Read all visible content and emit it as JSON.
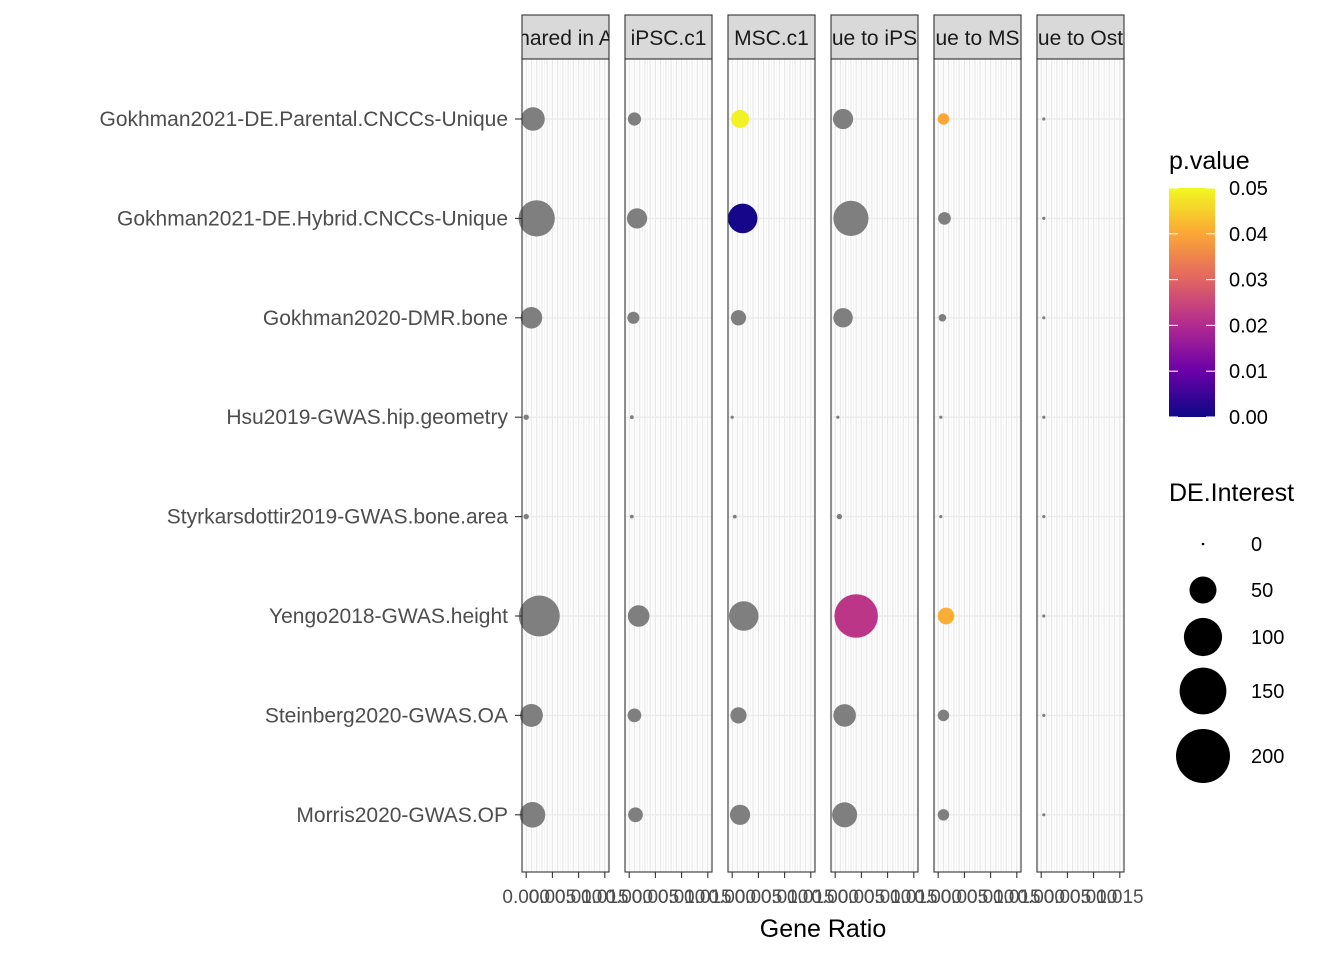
{
  "chart_data": {
    "type": "scatter",
    "xlabel": "Gene Ratio",
    "rows": [
      "Gokhman2021-DE.Parental.CNCCs-Unique",
      "Gokhman2021-DE.Hybrid.CNCCs-Unique",
      "Gokhman2020-DMR.bone",
      "Hsu2019-GWAS.hip.geometry",
      "Styrkarsdottir2019-GWAS.bone.area",
      "Yengo2018-GWAS.height",
      "Steinberg2020-GWAS.OA",
      "Morris2020-GWAS.OP"
    ],
    "x_ticks": [
      "0.000",
      "0.005",
      "0.010",
      "0.015"
    ],
    "x_tick_values": [
      0,
      0.005,
      0.01,
      0.015
    ],
    "xlim": [
      -0.0008,
      0.0158
    ],
    "na_color": "#7f7f7f",
    "panels": [
      {
        "label": "hared in A",
        "points": [
          {
            "x": 0.0013,
            "y": 0,
            "size": 38,
            "p": null
          },
          {
            "x": 0.002,
            "y": 1,
            "size": 90,
            "p": null
          },
          {
            "x": 0.001,
            "y": 2,
            "size": 32,
            "p": null
          },
          {
            "x": 0.0,
            "y": 3,
            "size": 2,
            "p": null
          },
          {
            "x": 0.0,
            "y": 4,
            "size": 2,
            "p": null
          },
          {
            "x": 0.0025,
            "y": 5,
            "size": 115,
            "p": null
          },
          {
            "x": 0.001,
            "y": 6,
            "size": 36,
            "p": null
          },
          {
            "x": 0.0012,
            "y": 7,
            "size": 45,
            "p": null
          }
        ]
      },
      {
        "label": "iPSC.c1",
        "points": [
          {
            "x": 0.001,
            "y": 0,
            "size": 12,
            "p": null
          },
          {
            "x": 0.0015,
            "y": 1,
            "size": 28,
            "p": null
          },
          {
            "x": 0.0008,
            "y": 2,
            "size": 10,
            "p": null
          },
          {
            "x": 0.0005,
            "y": 3,
            "size": 1,
            "p": null
          },
          {
            "x": 0.0005,
            "y": 4,
            "size": 1,
            "p": null
          },
          {
            "x": 0.0018,
            "y": 5,
            "size": 32,
            "p": null
          },
          {
            "x": 0.001,
            "y": 6,
            "size": 13,
            "p": null
          },
          {
            "x": 0.0012,
            "y": 7,
            "size": 15,
            "p": null
          }
        ]
      },
      {
        "label": "MSC.c1",
        "points": [
          {
            "x": 0.0015,
            "y": 0,
            "size": 22,
            "p": 0.049
          },
          {
            "x": 0.002,
            "y": 1,
            "size": 60,
            "p": 0.001
          },
          {
            "x": 0.0012,
            "y": 2,
            "size": 16,
            "p": null
          },
          {
            "x": 0.0,
            "y": 3,
            "size": 0,
            "p": null
          },
          {
            "x": 0.0005,
            "y": 4,
            "size": 1,
            "p": null
          },
          {
            "x": 0.0022,
            "y": 5,
            "size": 60,
            "p": null
          },
          {
            "x": 0.0012,
            "y": 6,
            "size": 18,
            "p": null
          },
          {
            "x": 0.0015,
            "y": 7,
            "size": 28,
            "p": null
          }
        ]
      },
      {
        "label": "ue to iPS",
        "points": [
          {
            "x": 0.0015,
            "y": 0,
            "size": 28,
            "p": null
          },
          {
            "x": 0.003,
            "y": 1,
            "size": 85,
            "p": null
          },
          {
            "x": 0.0015,
            "y": 2,
            "size": 26,
            "p": null
          },
          {
            "x": 0.0005,
            "y": 3,
            "size": 0,
            "p": null
          },
          {
            "x": 0.0008,
            "y": 4,
            "size": 2,
            "p": null
          },
          {
            "x": 0.004,
            "y": 5,
            "size": 130,
            "p": 0.022
          },
          {
            "x": 0.0018,
            "y": 6,
            "size": 35,
            "p": null
          },
          {
            "x": 0.0018,
            "y": 7,
            "size": 43,
            "p": null
          }
        ]
      },
      {
        "label": "ue to MS",
        "points": [
          {
            "x": 0.001,
            "y": 0,
            "size": 9,
            "p": 0.04
          },
          {
            "x": 0.0012,
            "y": 1,
            "size": 11,
            "p": null
          },
          {
            "x": 0.0008,
            "y": 2,
            "size": 4,
            "p": null
          },
          {
            "x": 0.0005,
            "y": 3,
            "size": 0,
            "p": null
          },
          {
            "x": 0.0005,
            "y": 4,
            "size": 0,
            "p": null
          },
          {
            "x": 0.0015,
            "y": 5,
            "size": 19,
            "p": 0.041
          },
          {
            "x": 0.001,
            "y": 6,
            "size": 9,
            "p": null
          },
          {
            "x": 0.001,
            "y": 7,
            "size": 9,
            "p": null
          }
        ]
      },
      {
        "label": "ue to Ost",
        "points": [
          {
            "x": 0.0005,
            "y": 0,
            "size": 0,
            "p": null
          },
          {
            "x": 0.0005,
            "y": 1,
            "size": 0,
            "p": null
          },
          {
            "x": 0.0005,
            "y": 2,
            "size": 0,
            "p": null
          },
          {
            "x": 0.0005,
            "y": 3,
            "size": 0,
            "p": null
          },
          {
            "x": 0.0005,
            "y": 4,
            "size": 0,
            "p": null
          },
          {
            "x": 0.0005,
            "y": 5,
            "size": 0,
            "p": null
          },
          {
            "x": 0.0005,
            "y": 6,
            "size": 0,
            "p": null
          },
          {
            "x": 0.0005,
            "y": 7,
            "size": 0,
            "p": null
          }
        ]
      }
    ],
    "color_legend": {
      "title": "p.value",
      "ticks": [
        "0.05",
        "0.04",
        "0.03",
        "0.02",
        "0.01",
        "0.00"
      ],
      "tick_values": [
        0.05,
        0.04,
        0.03,
        0.02,
        0.01,
        0.0
      ],
      "range": [
        0,
        0.05
      ],
      "palette": [
        "#0d0887",
        "#6a00a8",
        "#b12a90",
        "#e16462",
        "#fca636",
        "#f0f921"
      ]
    },
    "size_legend": {
      "title": "DE.Interest",
      "ticks": [
        "0",
        "50",
        "100",
        "150",
        "200"
      ],
      "values": [
        0,
        50,
        100,
        150,
        200
      ]
    }
  }
}
